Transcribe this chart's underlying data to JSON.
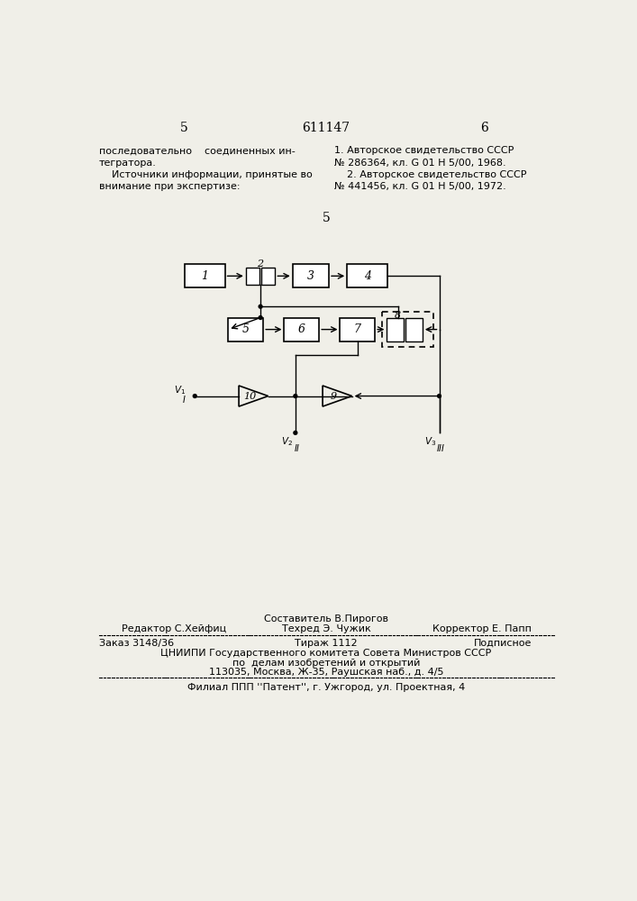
{
  "page_number_left": "5",
  "page_number_center": "611147",
  "page_number_right": "6",
  "text_left_col": "последовательно    соединенных ин-\nтегратора.\n    Источники информации, принятые во\nвнимание при экспертизе:",
  "text_right_col": "1. Авторское свидетельство СССР\n№ 286364, кл. G 01 H 5/00, 1968.\n    2. Авторское свидетельство СССР\n№ 441456, кл. G 01 H 5/00, 1972.",
  "center_label": "5",
  "footer_line1_left": "Редактор С.Хейфиц",
  "footer_line1_center_top": "Составитель В.Пирогов",
  "footer_line1_center_bot": "Техред Э. Чужик",
  "footer_line1_right": "Корректор Е. Папп",
  "footer_line2_left": "Заказ 3148/36",
  "footer_line2_center": "Тираж 1112",
  "footer_line2_right": "Подписное",
  "footer_line3": "ЦНИИПИ Государственного комитета Совета Министров СССР",
  "footer_line4": "по  делам изобретений и открытий",
  "footer_line5": "113035, Москва, Ж-35, Раушская наб., д. 4/5",
  "footer_line6": "Филиал ППП ''Патент'', г. Ужгород, ул. Проектная, 4",
  "bg_color": "#f0efe8"
}
